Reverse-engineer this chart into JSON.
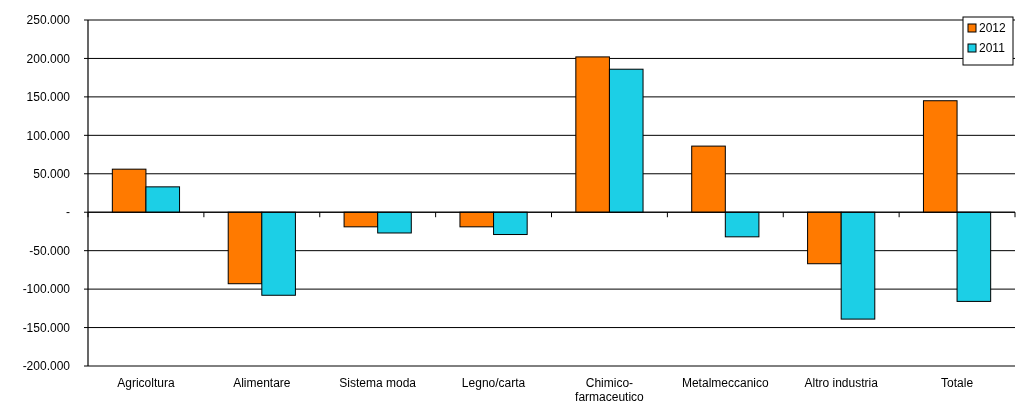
{
  "chart_data": {
    "type": "bar",
    "categories": [
      "Agricoltura",
      "Alimentare",
      "Sistema moda",
      "Legno/carta",
      "Chimico-farmaceutico",
      "Metalmeccanico",
      "Altro industria",
      "Totale"
    ],
    "series": [
      {
        "name": "2012",
        "color": "#ff7a00",
        "values": [
          56000,
          -93000,
          -19000,
          -19000,
          202000,
          86000,
          -67000,
          145000
        ]
      },
      {
        "name": "2011",
        "color": "#1ccfe6",
        "values": [
          33000,
          -108000,
          -27000,
          -29000,
          186000,
          -32000,
          -139000,
          -116000
        ]
      }
    ],
    "ylim": [
      -200000,
      250000
    ],
    "yticks": [
      {
        "value": -200000,
        "label": "-200.000"
      },
      {
        "value": -150000,
        "label": "-150.000"
      },
      {
        "value": -100000,
        "label": "-100.000"
      },
      {
        "value": -50000,
        "label": "-50.000"
      },
      {
        "value": 0,
        "label": "-"
      },
      {
        "value": 50000,
        "label": "50.000"
      },
      {
        "value": 100000,
        "label": "100.000"
      },
      {
        "value": 150000,
        "label": "150.000"
      },
      {
        "value": 200000,
        "label": "200.000"
      },
      {
        "value": 250000,
        "label": "250.000"
      }
    ],
    "grid": "y",
    "legend": "top right"
  }
}
